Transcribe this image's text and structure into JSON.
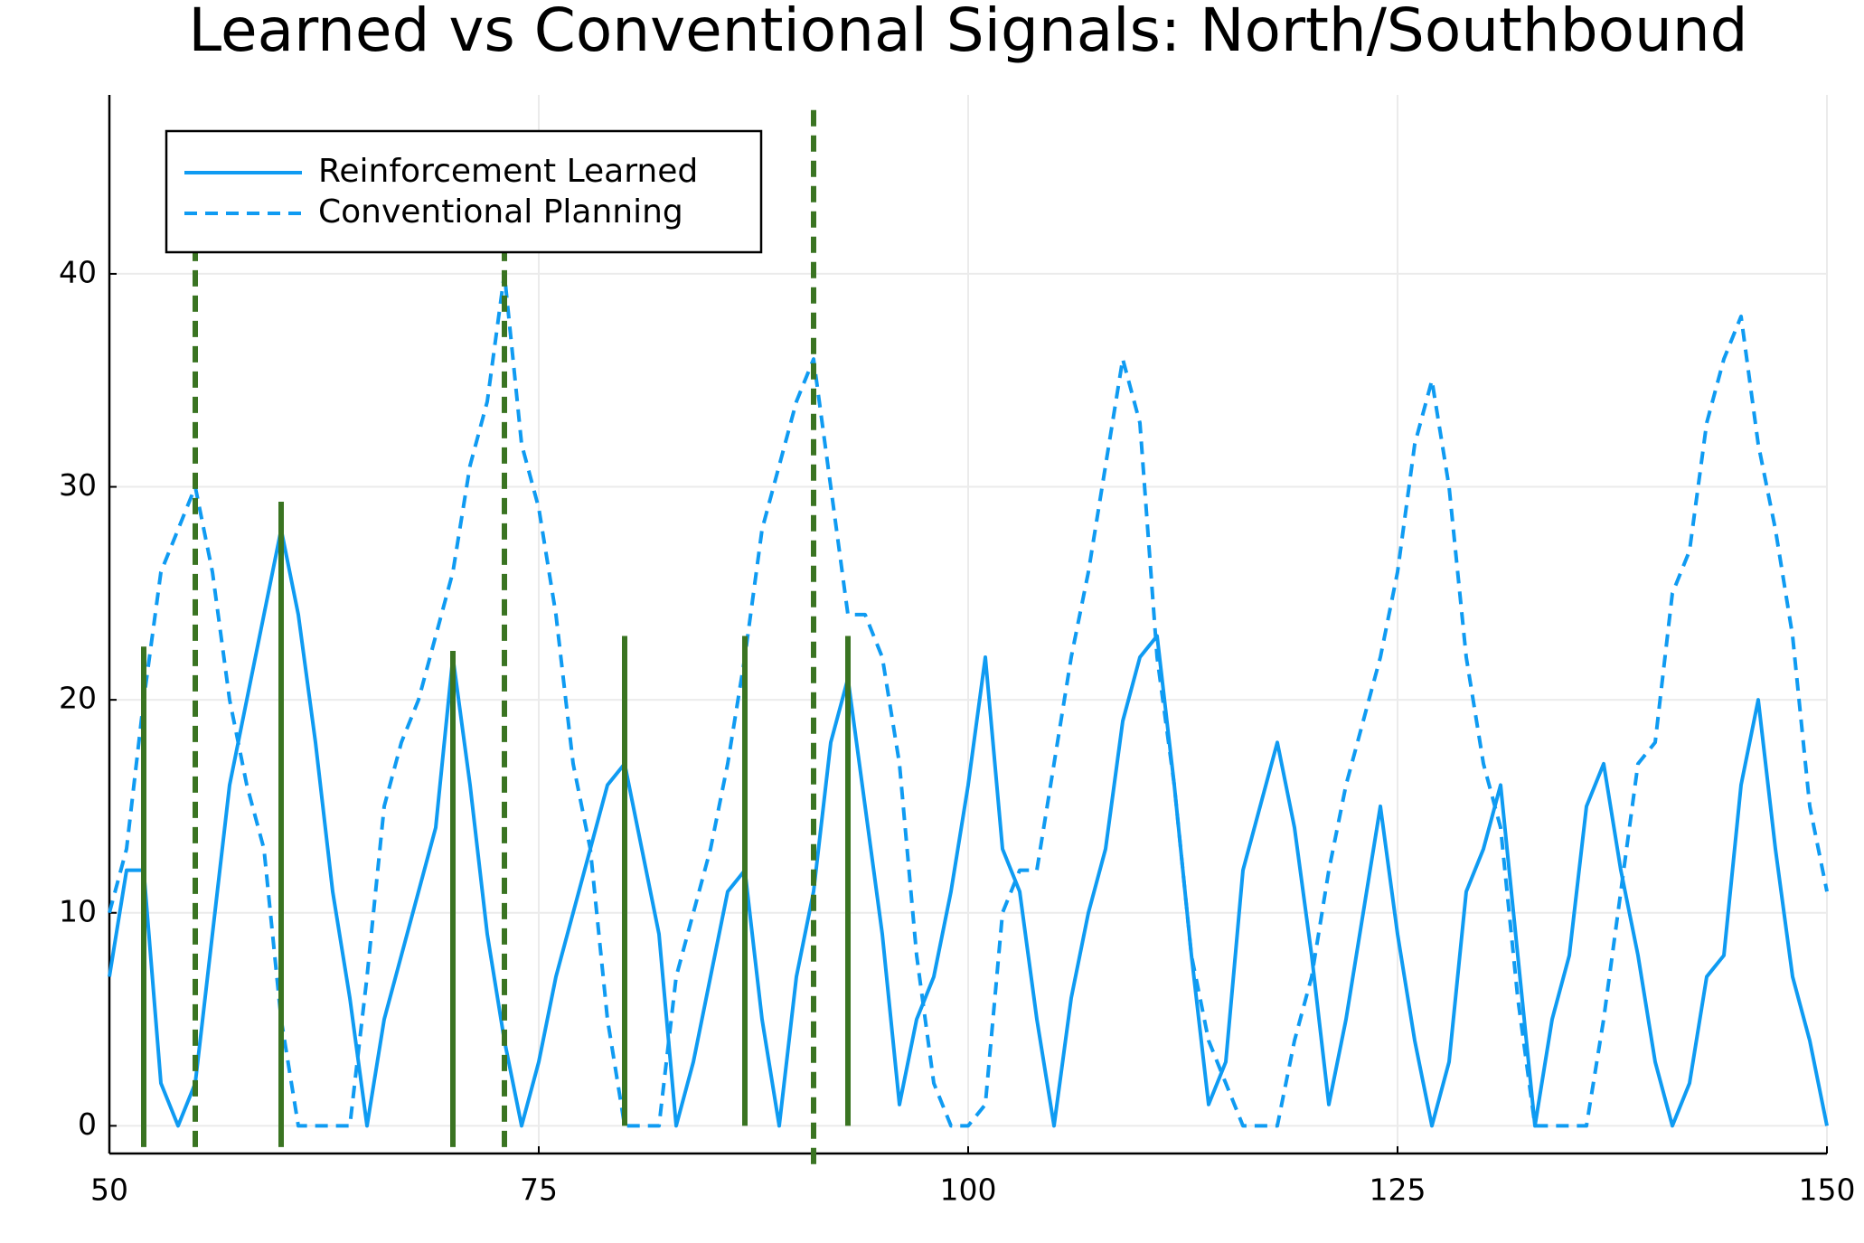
{
  "chart_data": {
    "type": "line",
    "title": "Learned vs Conventional Signals: North/Southbound",
    "x": [
      50,
      51,
      52,
      53,
      54,
      55,
      56,
      57,
      58,
      59,
      60,
      61,
      62,
      63,
      64,
      65,
      66,
      67,
      68,
      69,
      70,
      71,
      72,
      73,
      74,
      75,
      76,
      77,
      78,
      79,
      80,
      81,
      82,
      83,
      84,
      85,
      86,
      87,
      88,
      89,
      90,
      91,
      92,
      93,
      94,
      95,
      96,
      97,
      98,
      99,
      100,
      101,
      102,
      103,
      104,
      105,
      106,
      107,
      108,
      109,
      110,
      111,
      112,
      113,
      114,
      115,
      116,
      117,
      118,
      119,
      120,
      121,
      122,
      123,
      124,
      125,
      126,
      127,
      128,
      129,
      130,
      131,
      132,
      133,
      134,
      135,
      136,
      137,
      138,
      139,
      140,
      141,
      142,
      143,
      144,
      145,
      146,
      147,
      148,
      149,
      150
    ],
    "series": [
      {
        "name": "Reinforcement Learned",
        "color": "#0f9bf2",
        "style": "solid",
        "values": [
          7,
          12,
          12,
          2,
          0,
          2,
          9,
          16,
          20,
          24,
          28,
          24,
          18,
          11,
          6,
          0,
          5,
          8,
          11,
          14,
          22,
          16,
          9,
          4,
          0,
          3,
          7,
          10,
          13,
          16,
          17,
          13,
          9,
          0,
          3,
          7,
          11,
          12,
          5,
          0,
          7,
          11,
          18,
          21,
          15,
          9,
          1,
          5,
          7,
          11,
          16,
          22,
          13,
          11,
          5,
          0,
          6,
          10,
          13,
          19,
          22,
          23,
          16,
          8,
          1,
          3,
          12,
          15,
          18,
          14,
          8,
          1,
          5,
          10,
          15,
          9,
          4,
          0,
          3,
          11,
          13,
          16,
          8,
          0,
          5,
          8,
          15,
          17,
          12,
          8,
          3,
          0,
          2,
          7,
          8,
          16,
          20,
          13,
          7,
          4,
          0
        ]
      },
      {
        "name": "Conventional Planning",
        "color": "#0f9bf2",
        "style": "dashed",
        "values": [
          10,
          13,
          20,
          26,
          28,
          30,
          26,
          20,
          16,
          13,
          5,
          0,
          0,
          0,
          0,
          7,
          15,
          18,
          20,
          23,
          26,
          31,
          34,
          40,
          32,
          29,
          24,
          17,
          13,
          5,
          0,
          0,
          0,
          7,
          10,
          13,
          17,
          22,
          28,
          31,
          34,
          36,
          30,
          24,
          24,
          22,
          17,
          8,
          2,
          0,
          0,
          1,
          10,
          12,
          12,
          17,
          22,
          26,
          31,
          36,
          33,
          22,
          16,
          8,
          4,
          2,
          0,
          0,
          0,
          4,
          7,
          12,
          16,
          19,
          22,
          26,
          32,
          35,
          30,
          22,
          17,
          14,
          6,
          0,
          0,
          0,
          0,
          5,
          11,
          17,
          18,
          25,
          27,
          33,
          36,
          38,
          32,
          28,
          23,
          15,
          11
        ]
      }
    ],
    "vlines": [
      {
        "color": "#3a7422",
        "style": "solid",
        "x": [
          52,
          60,
          70,
          80,
          87,
          93
        ],
        "ymin": [
          -1,
          -1,
          -1,
          0,
          0,
          0
        ],
        "ymax": [
          22.5,
          29.3,
          22.3,
          23,
          23,
          23
        ]
      },
      {
        "color": "#3a7422",
        "style": "dashed",
        "x": [
          55,
          73,
          91
        ],
        "ymin": [
          -1,
          -1,
          -1.8
        ],
        "ymax": [
          41,
          41,
          48
        ]
      }
    ],
    "xlim": [
      50,
      150
    ],
    "xticks": [
      50,
      75,
      100,
      125,
      150
    ],
    "ylim": [
      -1.3,
      48.4
    ],
    "yticks": [
      0,
      10,
      20,
      30,
      40
    ],
    "grid": true,
    "legend": "top-left"
  }
}
